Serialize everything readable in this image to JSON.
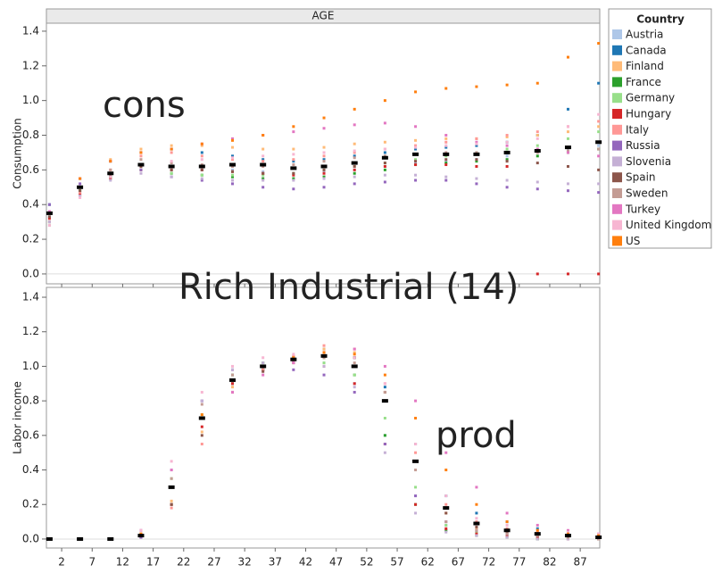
{
  "header": "AGE",
  "legend_title": "Country",
  "annotations": [
    "cons",
    "Rich Industrial (14)",
    "prod"
  ],
  "chart_data": [
    {
      "type": "scatter",
      "ylabel": "Consumption",
      "x": [
        0,
        5,
        10,
        15,
        20,
        25,
        30,
        35,
        40,
        45,
        50,
        55,
        60,
        65,
        70,
        75,
        80,
        85,
        90
      ],
      "xlim": [
        -0.5,
        90.2
      ],
      "xticks": [
        2,
        7,
        12,
        17,
        22,
        27,
        32,
        37,
        42,
        47,
        52,
        57,
        62,
        67,
        72,
        77,
        82,
        87
      ],
      "ylim": [
        -0.057,
        1.446
      ],
      "yticks": [
        {
          "value": 0,
          "label": "0.0"
        },
        0.2,
        0.4,
        0.6,
        0.8,
        {
          "value": 1,
          "label": "1.0"
        },
        1.2,
        1.4
      ],
      "series": [
        {
          "name": "Austria",
          "color": "#aec7e8",
          "values": [
            0.33,
            0.48,
            0.56,
            0.62,
            0.6,
            0.6,
            0.6,
            0.59,
            0.58,
            0.59,
            0.6,
            0.62,
            0.64,
            0.65,
            0.66,
            0.68,
            0.7,
            0.72,
            0.74
          ]
        },
        {
          "name": "Canada",
          "color": "#1f77b4",
          "values": [
            0.4,
            0.55,
            0.65,
            0.7,
            0.72,
            0.7,
            0.68,
            0.66,
            0.65,
            0.66,
            0.68,
            0.7,
            0.72,
            0.73,
            0.74,
            0.76,
            0.8,
            0.95,
            1.1
          ]
        },
        {
          "name": "Finland",
          "color": "#ffbb78",
          "values": [
            0.35,
            0.55,
            0.66,
            0.72,
            0.74,
            0.74,
            0.73,
            0.72,
            0.72,
            0.73,
            0.75,
            0.76,
            0.77,
            0.78,
            0.78,
            0.79,
            0.8,
            0.82,
            0.85
          ]
        },
        {
          "name": "France",
          "color": "#2ca02c",
          "values": [
            0.3,
            0.48,
            0.56,
            0.6,
            0.58,
            0.57,
            0.56,
            0.55,
            0.55,
            0.56,
            0.58,
            0.6,
            0.63,
            0.64,
            0.65,
            0.66,
            0.68,
            0.7,
            0.72
          ]
        },
        {
          "name": "Germany",
          "color": "#98df8a",
          "values": [
            0.28,
            0.45,
            0.55,
            0.6,
            0.58,
            0.57,
            0.57,
            0.57,
            0.58,
            0.6,
            0.62,
            0.64,
            0.66,
            0.68,
            0.7,
            0.72,
            0.74,
            0.78,
            0.82
          ]
        },
        {
          "name": "Hungary",
          "color": "#d62728",
          "values": [
            0.32,
            0.46,
            0.55,
            0.6,
            0.6,
            0.6,
            0.59,
            0.58,
            0.57,
            0.58,
            0.6,
            0.62,
            0.63,
            0.63,
            0.62,
            0.62,
            0,
            0,
            0
          ]
        },
        {
          "name": "Italy",
          "color": "#ff9896",
          "values": [
            0.3,
            0.47,
            0.6,
            0.68,
            0.7,
            0.68,
            0.66,
            0.65,
            0.66,
            0.68,
            0.7,
            0.72,
            0.74,
            0.76,
            0.78,
            0.8,
            0.82,
            0.85,
            0.88
          ]
        },
        {
          "name": "Russia",
          "color": "#9467bd",
          "values": [
            0.4,
            0.52,
            0.58,
            0.6,
            0.56,
            0.54,
            0.52,
            0.5,
            0.49,
            0.5,
            0.52,
            0.53,
            0.54,
            0.54,
            0.52,
            0.5,
            0.49,
            0.48,
            0.47
          ]
        },
        {
          "name": "Slovenia",
          "color": "#c5b0d5",
          "values": [
            0.3,
            0.45,
            0.54,
            0.58,
            0.56,
            0.55,
            0.54,
            0.54,
            0.54,
            0.55,
            0.56,
            0.57,
            0.57,
            0.56,
            0.55,
            0.54,
            0.53,
            0.52,
            0.52
          ]
        },
        {
          "name": "Spain",
          "color": "#8c564b",
          "values": [
            0.33,
            0.48,
            0.57,
            0.62,
            0.6,
            0.6,
            0.59,
            0.58,
            0.58,
            0.6,
            0.62,
            0.64,
            0.65,
            0.66,
            0.66,
            0.65,
            0.64,
            0.62,
            0.6
          ]
        },
        {
          "name": "Sweden",
          "color": "#c49c94",
          "values": [
            0.35,
            0.5,
            0.6,
            0.66,
            0.64,
            0.63,
            0.62,
            0.62,
            0.63,
            0.65,
            0.67,
            0.68,
            0.69,
            0.7,
            0.7,
            0.7,
            0.7,
            0.71,
            0.72
          ]
        },
        {
          "name": "Turkey",
          "color": "#e377c2",
          "values": [
            0.36,
            0.55,
            0.65,
            0.7,
            0.72,
            0.75,
            0.78,
            0.8,
            0.82,
            0.84,
            0.86,
            0.87,
            0.85,
            0.8,
            0.76,
            0.74,
            0.72,
            0.7,
            0.68
          ]
        },
        {
          "name": "United Kingdom",
          "color": "#f7b6d2",
          "values": [
            0.28,
            0.44,
            0.56,
            0.63,
            0.65,
            0.66,
            0.67,
            0.68,
            0.69,
            0.7,
            0.71,
            0.72,
            0.73,
            0.74,
            0.75,
            0.76,
            0.78,
            0.85,
            0.92
          ]
        },
        {
          "name": "US",
          "color": "#ff7f0e",
          "values": [
            0.35,
            0.55,
            0.65,
            0.7,
            0.72,
            0.75,
            0.77,
            0.8,
            0.85,
            0.9,
            0.95,
            1.0,
            1.05,
            1.07,
            1.08,
            1.09,
            1.1,
            1.25,
            1.33
          ]
        },
        {
          "color": "#000000",
          "values": [
            0.35,
            0.5,
            0.58,
            0.63,
            0.62,
            0.62,
            0.63,
            0.63,
            0.61,
            0.62,
            0.64,
            0.67,
            0.69,
            0.69,
            0.69,
            0.7,
            0.71,
            0.73,
            0.76
          ]
        }
      ]
    },
    {
      "type": "scatter",
      "ylabel": "Labor income",
      "x": [
        0,
        5,
        10,
        15,
        20,
        25,
        30,
        35,
        40,
        45,
        50,
        55,
        60,
        65,
        70,
        75,
        80,
        85,
        90
      ],
      "xlim": [
        -0.5,
        90.2
      ],
      "xticks": [
        2,
        7,
        12,
        17,
        22,
        27,
        32,
        37,
        42,
        47,
        52,
        57,
        62,
        67,
        72,
        77,
        82,
        87
      ],
      "ylim": [
        -0.052,
        1.457
      ],
      "yticks": [
        {
          "value": 0,
          "label": "0.0"
        },
        0.2,
        0.4,
        0.6,
        0.8,
        {
          "value": 1,
          "label": "1.0"
        },
        1.2,
        1.4
      ],
      "series": [
        {
          "name": "Austria",
          "color": "#aec7e8",
          "values": [
            0,
            0,
            0,
            0.05,
            0.4,
            0.8,
            0.95,
            1.0,
            1.03,
            1.02,
            0.9,
            0.6,
            0.25,
            0.08,
            0.04,
            0.02,
            0.01,
            0,
            0
          ]
        },
        {
          "name": "Canada",
          "color": "#1f77b4",
          "values": [
            0,
            0,
            0,
            0.03,
            0.3,
            0.7,
            0.9,
            0.98,
            1.05,
            1.1,
            1.05,
            0.88,
            0.55,
            0.25,
            0.15,
            0.1,
            0.06,
            0.04,
            0.02
          ]
        },
        {
          "name": "Finland",
          "color": "#ffbb78",
          "values": [
            0,
            0,
            0,
            0.02,
            0.22,
            0.62,
            0.88,
            1.0,
            1.06,
            1.1,
            1.08,
            0.85,
            0.45,
            0.15,
            0.06,
            0.03,
            0.02,
            0.01,
            0
          ]
        },
        {
          "name": "France",
          "color": "#2ca02c",
          "values": [
            0,
            0,
            0,
            0.01,
            0.2,
            0.7,
            0.95,
            1.02,
            1.05,
            1.05,
            0.95,
            0.6,
            0.2,
            0.05,
            0.02,
            0.01,
            0,
            0,
            0
          ]
        },
        {
          "name": "Germany",
          "color": "#98df8a",
          "values": [
            0,
            0,
            0,
            0.03,
            0.35,
            0.72,
            0.9,
            0.98,
            1.02,
            1.02,
            0.95,
            0.7,
            0.3,
            0.08,
            0.04,
            0.02,
            0.01,
            0,
            0
          ]
        },
        {
          "name": "Hungary",
          "color": "#d62728",
          "values": [
            0,
            0,
            0,
            0.01,
            0.2,
            0.65,
            0.9,
            0.98,
            1.02,
            1.0,
            0.9,
            0.55,
            0.2,
            0.06,
            0.03,
            0.02,
            0.01,
            0,
            0
          ]
        },
        {
          "name": "Italy",
          "color": "#ff9896",
          "values": [
            0,
            0,
            0,
            0.02,
            0.18,
            0.55,
            0.85,
            0.98,
            1.06,
            1.12,
            1.1,
            0.9,
            0.5,
            0.2,
            0.1,
            0.06,
            0.04,
            0.03,
            0.02
          ]
        },
        {
          "name": "Russia",
          "color": "#9467bd",
          "values": [
            0,
            0,
            0,
            0.01,
            0.3,
            0.8,
            0.98,
            1.0,
            0.98,
            0.95,
            0.85,
            0.55,
            0.25,
            0.1,
            0.05,
            0.03,
            0.02,
            0.01,
            0
          ]
        },
        {
          "name": "Slovenia",
          "color": "#c5b0d5",
          "values": [
            0,
            0,
            0,
            0.02,
            0.3,
            0.8,
            0.98,
            1.02,
            1.03,
            1.0,
            0.88,
            0.5,
            0.15,
            0.04,
            0.02,
            0.01,
            0,
            0,
            0
          ]
        },
        {
          "name": "Spain",
          "color": "#8c564b",
          "values": [
            0,
            0,
            0,
            0.02,
            0.2,
            0.6,
            0.85,
            0.97,
            1.04,
            1.08,
            1.05,
            0.85,
            0.45,
            0.15,
            0.07,
            0.04,
            0.02,
            0.01,
            0
          ]
        },
        {
          "name": "Sweden",
          "color": "#c49c94",
          "values": [
            0,
            0,
            0,
            0.03,
            0.35,
            0.78,
            0.95,
            1.0,
            1.03,
            1.05,
            1.02,
            0.85,
            0.4,
            0.1,
            0.05,
            0.03,
            0.02,
            0.01,
            0
          ]
        },
        {
          "name": "Turkey",
          "color": "#e377c2",
          "values": [
            0,
            0,
            0,
            0.05,
            0.4,
            0.7,
            0.85,
            0.95,
            1.02,
            1.08,
            1.1,
            1.0,
            0.8,
            0.5,
            0.3,
            0.15,
            0.08,
            0.05,
            0.03
          ]
        },
        {
          "name": "United Kingdom",
          "color": "#f7b6d2",
          "values": [
            0,
            0,
            0,
            0.05,
            0.45,
            0.85,
            1.0,
            1.05,
            1.07,
            1.08,
            1.05,
            0.9,
            0.55,
            0.25,
            0.12,
            0.08,
            0.05,
            0.04,
            0.03
          ]
        },
        {
          "name": "US",
          "color": "#ff7f0e",
          "values": [
            0,
            0,
            0,
            0.03,
            0.3,
            0.72,
            0.92,
            1.0,
            1.05,
            1.08,
            1.07,
            0.95,
            0.7,
            0.4,
            0.2,
            0.1,
            0.05,
            0.03,
            0.02
          ]
        },
        {
          "color": "#000000",
          "values": [
            0,
            0,
            0,
            0.02,
            0.3,
            0.7,
            0.92,
            1.0,
            1.04,
            1.06,
            1.0,
            0.8,
            0.45,
            0.18,
            0.09,
            0.05,
            0.03,
            0.02,
            0.01
          ]
        }
      ]
    }
  ]
}
